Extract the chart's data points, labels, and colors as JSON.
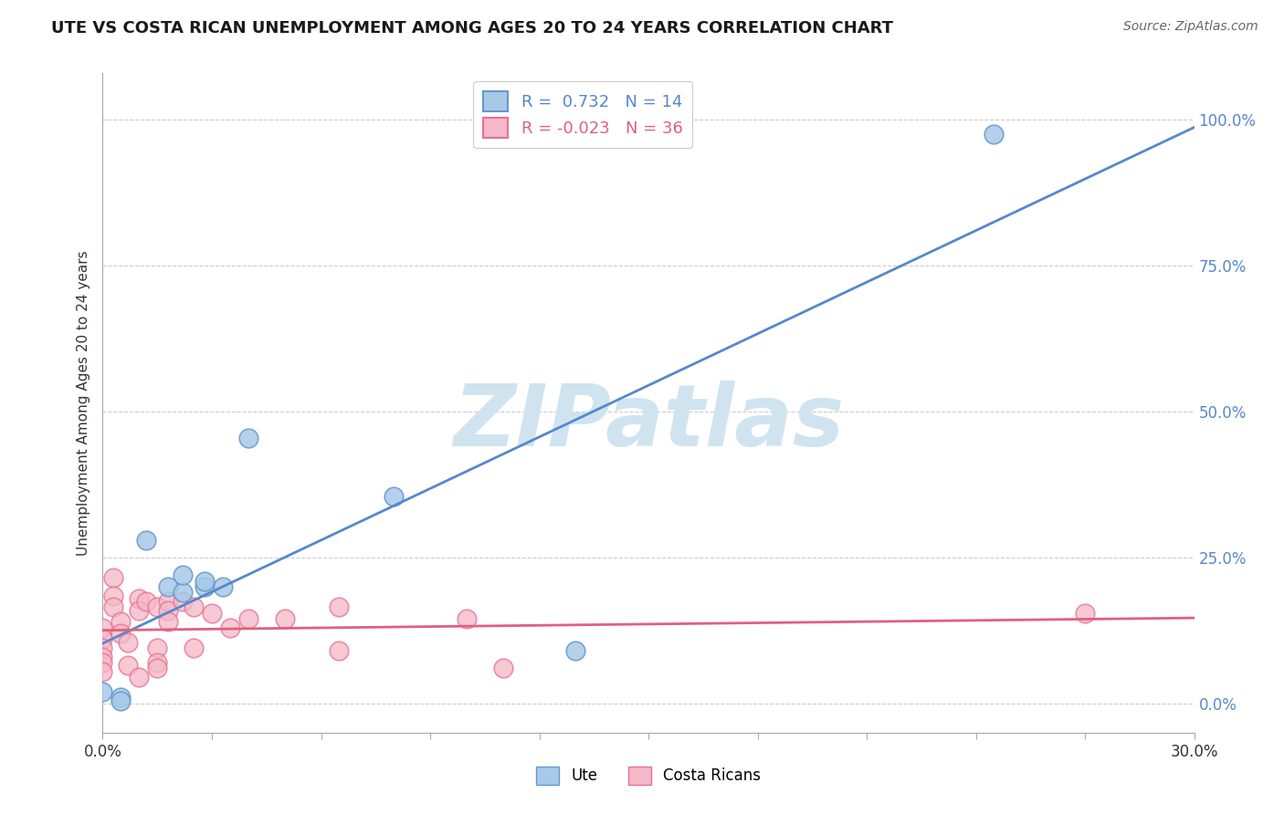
{
  "title": "UTE VS COSTA RICAN UNEMPLOYMENT AMONG AGES 20 TO 24 YEARS CORRELATION CHART",
  "source_text": "Source: ZipAtlas.com",
  "ylabel": "Unemployment Among Ages 20 to 24 years",
  "xlim": [
    0.0,
    0.3
  ],
  "ylim": [
    -0.05,
    1.08
  ],
  "ytick_values": [
    0.0,
    0.25,
    0.5,
    0.75,
    1.0
  ],
  "ute_color": "#a8c8e8",
  "ute_edge_color": "#6699cc",
  "costa_color": "#f5b8c8",
  "costa_edge_color": "#e87090",
  "ute_line_color": "#5588cc",
  "costa_line_color": "#e06080",
  "watermark": "ZIPatlas",
  "watermark_color": "#d0e4f0",
  "background_color": "#ffffff",
  "grid_color": "#cccccc",
  "ute_R": 0.732,
  "ute_N": 14,
  "costa_R": -0.023,
  "costa_N": 36,
  "ute_points": [
    [
      0.0,
      0.02
    ],
    [
      0.005,
      0.01
    ],
    [
      0.005,
      0.005
    ],
    [
      0.012,
      0.28
    ],
    [
      0.018,
      0.2
    ],
    [
      0.022,
      0.19
    ],
    [
      0.022,
      0.22
    ],
    [
      0.028,
      0.2
    ],
    [
      0.028,
      0.21
    ],
    [
      0.033,
      0.2
    ],
    [
      0.04,
      0.455
    ],
    [
      0.08,
      0.355
    ],
    [
      0.13,
      0.09
    ],
    [
      0.245,
      0.975
    ]
  ],
  "costa_points": [
    [
      0.0,
      0.13
    ],
    [
      0.0,
      0.11
    ],
    [
      0.0,
      0.095
    ],
    [
      0.0,
      0.08
    ],
    [
      0.0,
      0.07
    ],
    [
      0.0,
      0.055
    ],
    [
      0.003,
      0.215
    ],
    [
      0.003,
      0.185
    ],
    [
      0.003,
      0.165
    ],
    [
      0.005,
      0.14
    ],
    [
      0.005,
      0.12
    ],
    [
      0.007,
      0.105
    ],
    [
      0.007,
      0.065
    ],
    [
      0.01,
      0.18
    ],
    [
      0.01,
      0.16
    ],
    [
      0.01,
      0.045
    ],
    [
      0.012,
      0.175
    ],
    [
      0.015,
      0.165
    ],
    [
      0.015,
      0.095
    ],
    [
      0.015,
      0.07
    ],
    [
      0.015,
      0.06
    ],
    [
      0.018,
      0.175
    ],
    [
      0.018,
      0.16
    ],
    [
      0.018,
      0.14
    ],
    [
      0.022,
      0.175
    ],
    [
      0.025,
      0.165
    ],
    [
      0.025,
      0.095
    ],
    [
      0.03,
      0.155
    ],
    [
      0.035,
      0.13
    ],
    [
      0.04,
      0.145
    ],
    [
      0.05,
      0.145
    ],
    [
      0.065,
      0.165
    ],
    [
      0.065,
      0.09
    ],
    [
      0.1,
      0.145
    ],
    [
      0.11,
      0.06
    ],
    [
      0.27,
      0.155
    ]
  ]
}
